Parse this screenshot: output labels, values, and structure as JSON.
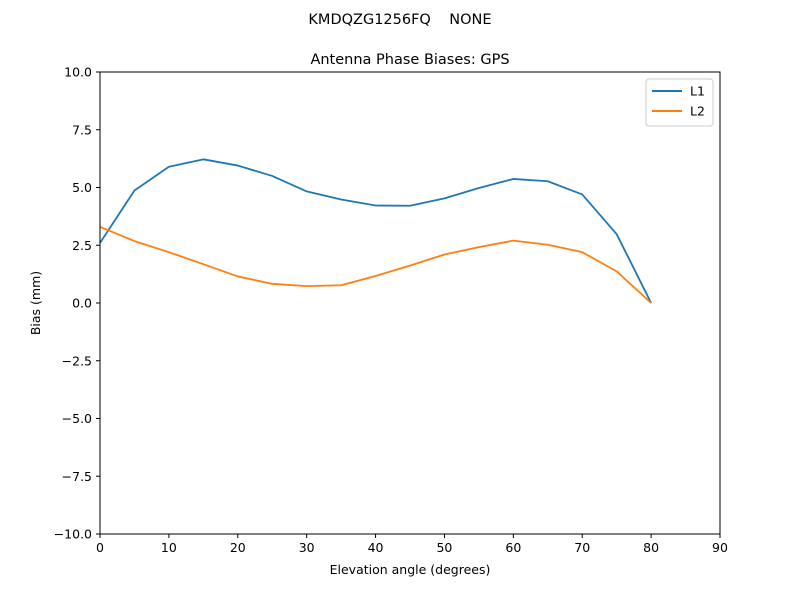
{
  "suptitle": "KMDQZG1256FQ    NONE",
  "chart_data": {
    "type": "line",
    "title": "Antenna Phase Biases: GPS",
    "xlabel": "Elevation angle (degrees)",
    "ylabel": "Bias (mm)",
    "xlim": [
      0,
      90
    ],
    "ylim": [
      -10,
      10
    ],
    "x_ticks": [
      0,
      10,
      20,
      30,
      40,
      50,
      60,
      70,
      80,
      90
    ],
    "y_ticks": [
      -10.0,
      -7.5,
      -5.0,
      -2.5,
      0.0,
      2.5,
      5.0,
      7.5,
      10.0
    ],
    "x_tick_labels": [
      "0",
      "10",
      "20",
      "30",
      "40",
      "50",
      "60",
      "70",
      "80",
      "90"
    ],
    "y_tick_labels": [
      "−10.0",
      "−7.5",
      "−5.0",
      "−2.5",
      "0.0",
      "2.5",
      "5.0",
      "7.5",
      "10.0"
    ],
    "grid": false,
    "legend_position": "top-right",
    "x": [
      0,
      5,
      10,
      15,
      20,
      25,
      30,
      35,
      40,
      45,
      50,
      55,
      60,
      65,
      70,
      75,
      80
    ],
    "series": [
      {
        "name": "L1",
        "color": "#1f77b4",
        "values": [
          2.6,
          4.87,
          5.9,
          6.22,
          5.95,
          5.5,
          4.83,
          4.48,
          4.22,
          4.21,
          4.53,
          4.98,
          5.37,
          5.27,
          4.7,
          2.98,
          0.0
        ]
      },
      {
        "name": "L2",
        "color": "#ff7f0e",
        "values": [
          3.3,
          2.68,
          2.2,
          1.68,
          1.15,
          0.83,
          0.73,
          0.77,
          1.17,
          1.62,
          2.1,
          2.42,
          2.7,
          2.52,
          2.2,
          1.37,
          0.0
        ]
      }
    ]
  }
}
